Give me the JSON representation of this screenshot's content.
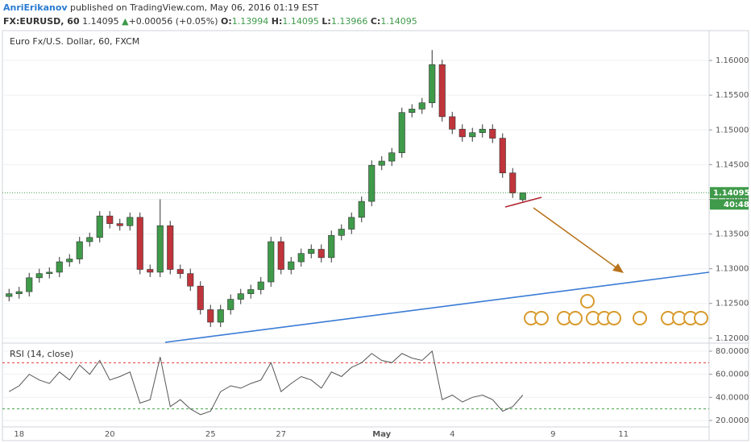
{
  "header": {
    "author": "AnriErikanov",
    "published": "published on TradingView.com, May 06, 2016 01:19 EST",
    "symbol": "FX:EURUSD, 60",
    "last": "1.14095",
    "change": "+0.00056 (+0.05%)",
    "o_label": "O:",
    "o": "1.13994",
    "h_label": "H:",
    "h": "1.14095",
    "l_label": "L:",
    "l": "1.13966",
    "c_label": "C:",
    "c": "1.14095"
  },
  "chart_data": [
    {
      "type": "candlestick",
      "title": "Euro Fx/U.S. Dollar, 60, FXCM",
      "categories": [
        null,
        "18",
        null,
        null,
        null,
        null,
        null,
        null,
        null,
        null,
        "20",
        null,
        null,
        null,
        null,
        null,
        null,
        null,
        null,
        null,
        "25",
        null,
        null,
        null,
        null,
        null,
        null,
        "27",
        null,
        null,
        null,
        null,
        null,
        null,
        null,
        null,
        null,
        "May",
        null,
        null,
        null,
        null,
        null,
        null,
        "4",
        null,
        null,
        null,
        null,
        null,
        null,
        null,
        null,
        null,
        "9",
        null,
        null,
        null,
        null,
        null,
        null,
        "11",
        null,
        null,
        null,
        null,
        null,
        null,
        null,
        null
      ],
      "open": [
        1.126,
        1.1264,
        1.1267,
        1.1287,
        1.1293,
        1.1295,
        1.131,
        1.1314,
        1.1339,
        1.1345,
        1.1376,
        1.1365,
        1.1362,
        1.1374,
        1.1299,
        1.1295,
        1.1362,
        1.1299,
        1.1293,
        1.1275,
        1.1241,
        1.1223,
        1.1241,
        1.1256,
        1.1264,
        1.127,
        1.1281,
        1.1339,
        1.1299,
        1.131,
        1.1322,
        1.1328,
        1.1316,
        1.1348,
        1.1357,
        1.1374,
        1.1397,
        1.1449,
        1.1455,
        1.1467,
        1.1525,
        1.153,
        1.1539,
        1.1594,
        1.1519,
        1.1501,
        1.149,
        1.1496,
        1.1501,
        1.1488,
        1.1438,
        1.13994,
        null,
        null,
        null,
        null,
        null,
        null,
        null,
        null,
        null,
        null,
        null,
        null,
        null,
        null,
        null,
        null,
        null,
        null
      ],
      "high": [
        1.1271,
        1.1274,
        1.1294,
        1.13,
        1.1302,
        1.1317,
        1.1321,
        1.1346,
        1.1352,
        1.1383,
        1.1383,
        1.1372,
        1.1381,
        1.1381,
        1.1306,
        1.14,
        1.1369,
        1.1306,
        1.13,
        1.1282,
        1.1248,
        1.1248,
        1.1263,
        1.1271,
        1.1277,
        1.1288,
        1.1346,
        1.1346,
        1.1317,
        1.1329,
        1.1335,
        1.1335,
        1.1355,
        1.1364,
        1.1381,
        1.1404,
        1.1456,
        1.1462,
        1.1474,
        1.1532,
        1.1537,
        1.1546,
        1.1615,
        1.1601,
        1.1526,
        1.1508,
        1.1503,
        1.1508,
        1.1508,
        1.1495,
        1.1445,
        1.14095,
        null,
        null,
        null,
        null,
        null,
        null,
        null,
        null,
        null,
        null,
        null,
        null,
        null,
        null,
        null,
        null,
        null,
        null
      ],
      "low": [
        1.1253,
        1.1257,
        1.126,
        1.128,
        1.1286,
        1.1288,
        1.1303,
        1.1307,
        1.1332,
        1.1338,
        1.1358,
        1.1355,
        1.1355,
        1.1292,
        1.1288,
        1.1288,
        1.1292,
        1.1286,
        1.1268,
        1.1234,
        1.1216,
        1.1216,
        1.1234,
        1.1249,
        1.1257,
        1.1263,
        1.1274,
        1.1292,
        1.1292,
        1.1303,
        1.1315,
        1.1309,
        1.1309,
        1.1341,
        1.135,
        1.1367,
        1.139,
        1.1442,
        1.1448,
        1.146,
        1.1518,
        1.1523,
        1.1532,
        1.1512,
        1.1494,
        1.1483,
        1.1483,
        1.1489,
        1.1481,
        1.1431,
        1.1402,
        1.13966,
        null,
        null,
        null,
        null,
        null,
        null,
        null,
        null,
        null,
        null,
        null,
        null,
        null,
        null,
        null,
        null,
        null,
        null
      ],
      "close": [
        1.1264,
        1.1267,
        1.1287,
        1.1293,
        1.1295,
        1.131,
        1.1314,
        1.1339,
        1.1345,
        1.1376,
        1.1365,
        1.1362,
        1.1374,
        1.1299,
        1.1295,
        1.1362,
        1.1299,
        1.1293,
        1.1275,
        1.1241,
        1.1223,
        1.1241,
        1.1256,
        1.1264,
        1.127,
        1.1281,
        1.1339,
        1.1299,
        1.131,
        1.1322,
        1.1328,
        1.1316,
        1.1348,
        1.1357,
        1.1374,
        1.1397,
        1.1449,
        1.1455,
        1.1467,
        1.1525,
        1.153,
        1.1539,
        1.1594,
        1.1519,
        1.1501,
        1.149,
        1.1496,
        1.1501,
        1.1488,
        1.1438,
        1.1409,
        1.14095,
        null,
        null,
        null,
        null,
        null,
        null,
        null,
        null,
        null,
        null,
        null,
        null,
        null,
        null,
        null,
        null,
        null,
        null
      ],
      "up_color": "#3f9a4a",
      "down_color": "#c0343b",
      "wick_color": "#333333",
      "ylim": [
        1.1194,
        1.1643
      ],
      "yticks": [
        {
          "value": 1.12,
          "label": "1.12000"
        },
        {
          "value": 1.125,
          "label": "1.12500"
        },
        {
          "value": 1.13,
          "label": "1.13000"
        },
        {
          "value": 1.135,
          "label": "1.13500"
        },
        {
          "value": 1.14,
          "label": "1.14000"
        },
        {
          "value": 1.145,
          "label": "1.14500"
        },
        {
          "value": 1.15,
          "label": "1.15000"
        },
        {
          "value": 1.155,
          "label": "1.15500"
        },
        {
          "value": 1.16,
          "label": "1.16000"
        }
      ],
      "last_price": {
        "value": 1.14095,
        "label": "1.14095"
      },
      "countdown": "40:48",
      "grid": true
    },
    {
      "type": "line",
      "title": "RSI (14, close)",
      "color": "#555555",
      "values": [
        45,
        50,
        60,
        55,
        52,
        62,
        55,
        68,
        60,
        72,
        55,
        58,
        62,
        35,
        38,
        75,
        32,
        38,
        30,
        25,
        28,
        45,
        50,
        48,
        52,
        55,
        70,
        45,
        52,
        58,
        55,
        48,
        62,
        58,
        66,
        70,
        78,
        72,
        70,
        78,
        74,
        72,
        80,
        38,
        42,
        36,
        40,
        42,
        38,
        28,
        32,
        42,
        null,
        null,
        null,
        null,
        null,
        null,
        null,
        null,
        null,
        null,
        null,
        null,
        null,
        null,
        null,
        null,
        null,
        null
      ],
      "ylim": [
        15.8,
        85.6
      ],
      "yticks": [
        {
          "value": 20,
          "label": "20.0000"
        },
        {
          "value": 40,
          "label": "40.0000"
        },
        {
          "value": 60,
          "label": "60.0000"
        },
        {
          "value": 80,
          "label": "80.0000"
        }
      ],
      "levels": [
        {
          "value": 70,
          "color": "#e53935"
        },
        {
          "value": 30,
          "color": "#43a047"
        }
      ]
    }
  ]
}
